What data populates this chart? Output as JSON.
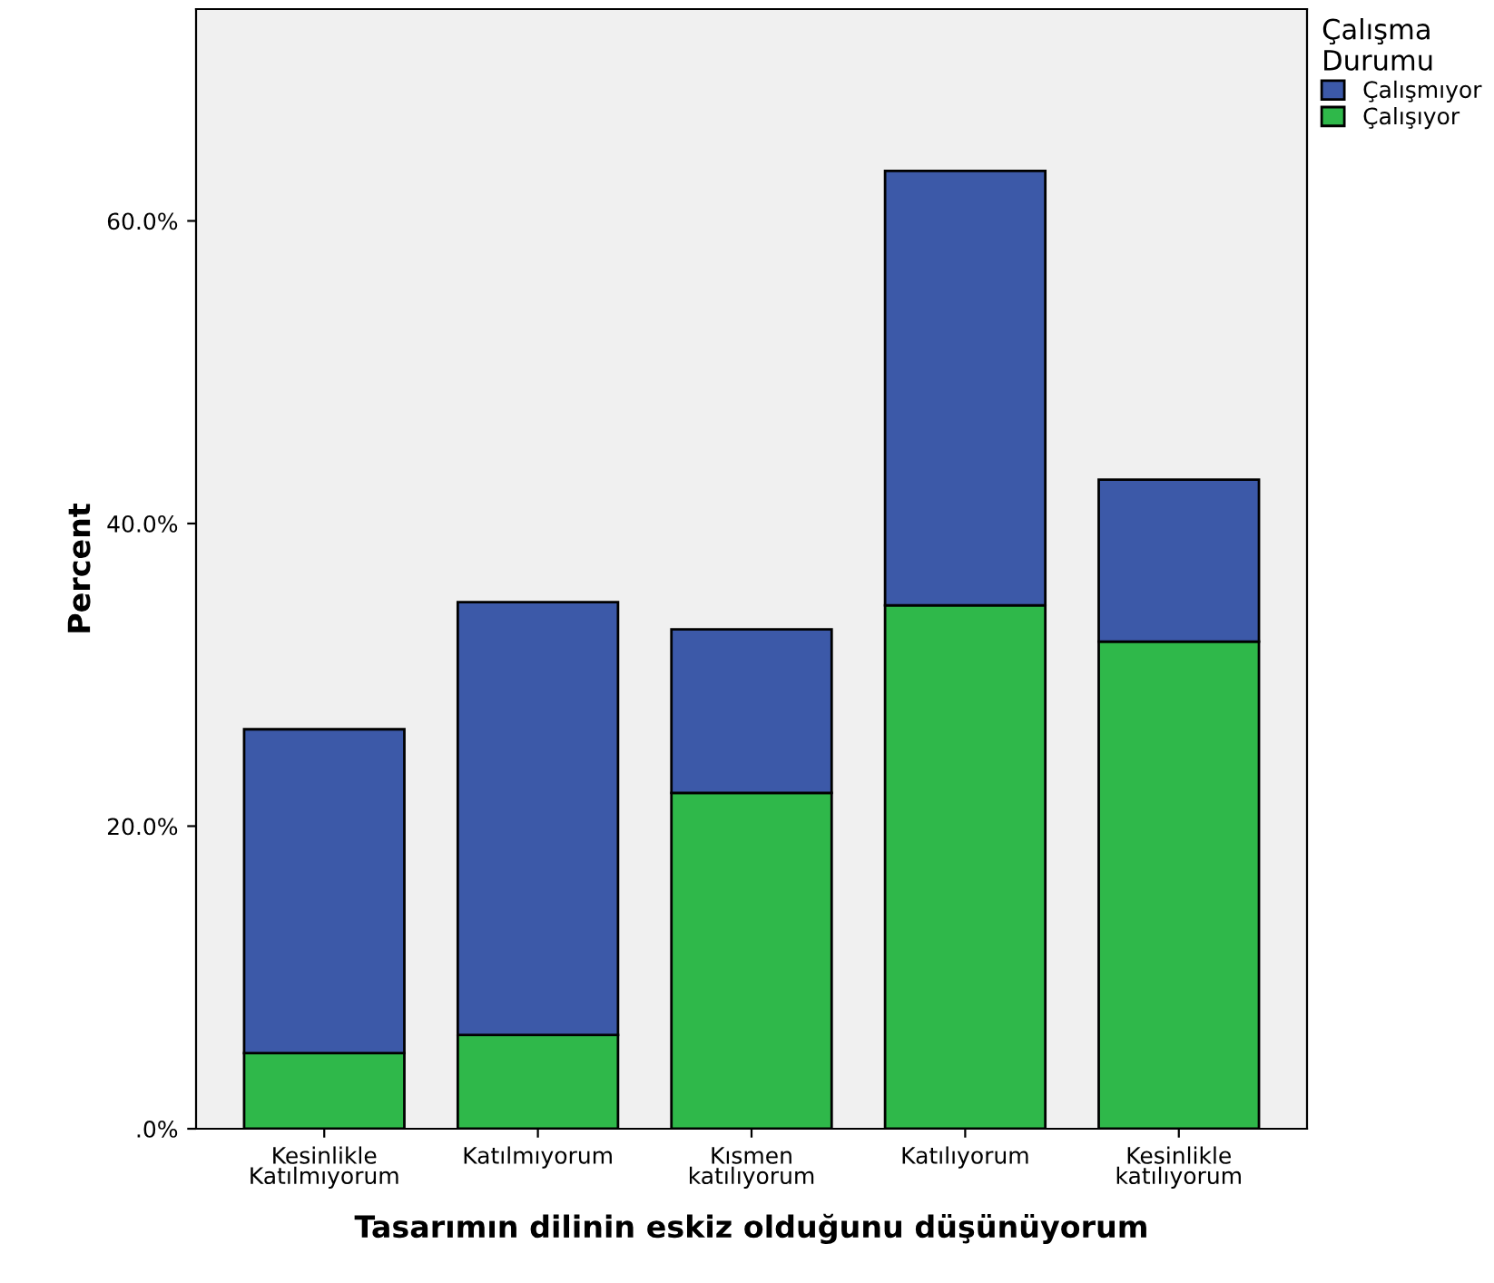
{
  "chart_data": {
    "type": "bar",
    "stacked": true,
    "xlabel": "Tasarımın dilinin eskiz olduğunu düşünüyorum",
    "ylabel": "Percent",
    "legend_title": "Çalışma\nDurumu",
    "categories": [
      "Kesinlikle\nKatılmıyorum",
      "Katılmıyorum",
      "Kısmen\nkatılıyorum",
      "Katılıyorum",
      "Kesinlikle\nkatılıyorum"
    ],
    "series": [
      {
        "name": "Çalışıyor",
        "color": "#2fb84a",
        "values": [
          5.0,
          6.2,
          22.2,
          34.6,
          32.2
        ]
      },
      {
        "name": "Çalışmıyor",
        "color": "#3c59a8",
        "values": [
          21.4,
          28.6,
          10.8,
          28.7,
          10.7
        ]
      }
    ],
    "ylim": [
      0,
      74
    ],
    "yticks": [
      {
        "value": 0,
        "label": ".0%"
      },
      {
        "value": 20,
        "label": "20.0%"
      },
      {
        "value": 40,
        "label": "40.0%"
      },
      {
        "value": 60,
        "label": "60.0%"
      }
    ],
    "grid": false,
    "legend": "top right"
  }
}
